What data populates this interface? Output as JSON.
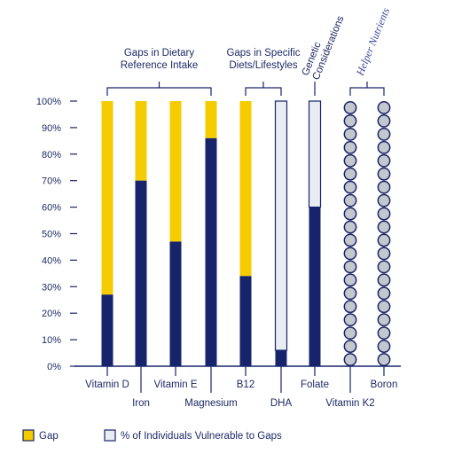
{
  "chart_data": {
    "type": "bar",
    "stacked": true,
    "yticks": [
      "0%",
      "10%",
      "20%",
      "30%",
      "40%",
      "50%",
      "60%",
      "70%",
      "80%",
      "90%",
      "100%"
    ],
    "ylim": [
      0,
      100
    ],
    "categories": [
      "Vitamin D",
      "Iron",
      "Vitamin E",
      "Magnesium",
      "B12",
      "DHA",
      "Folate",
      "Vitamin K2",
      "Boron"
    ],
    "series": [
      {
        "name": "Gap",
        "values": [
          73,
          30,
          53,
          14,
          66,
          null,
          null,
          null,
          null
        ]
      },
      {
        "name": "% of Individuals Vulnerable to Gaps",
        "values": [
          null,
          null,
          null,
          null,
          null,
          94,
          40,
          null,
          null
        ]
      }
    ],
    "base_values": [
      27,
      70,
      47,
      86,
      34,
      6,
      60,
      null,
      null
    ],
    "bar_kind": [
      "gap",
      "gap",
      "gap",
      "gap",
      "gap",
      "vulnerable",
      "vulnerable",
      "helper",
      "helper"
    ],
    "groups": [
      {
        "label_lines": [
          "Gaps in Dietary",
          "Reference Intake"
        ],
        "first": 0,
        "last": 3,
        "style": "normal"
      },
      {
        "label_lines": [
          "Gaps in Specific",
          "Diets/Lifestyles"
        ],
        "first": 4,
        "last": 5,
        "style": "normal"
      },
      {
        "label_lines": [
          "Genetic",
          "Considerations"
        ],
        "first": 6,
        "last": 6,
        "style": "rotated"
      },
      {
        "label_lines": [
          "Helper Nutrients"
        ],
        "first": 7,
        "last": 8,
        "style": "rotated-italic"
      }
    ],
    "legend": [
      {
        "label": "Gap",
        "color": "#f5cc00"
      },
      {
        "label": "% of Individuals Vulnerable to Gaps",
        "color": "#e8edf2"
      }
    ],
    "colors": {
      "base": "#17246b",
      "gap": "#f5cc00",
      "vulnerable": "#e8edf2",
      "helper_dot": "#c4c8cc",
      "outline": "#17246b",
      "text": "#1d2a66"
    }
  }
}
